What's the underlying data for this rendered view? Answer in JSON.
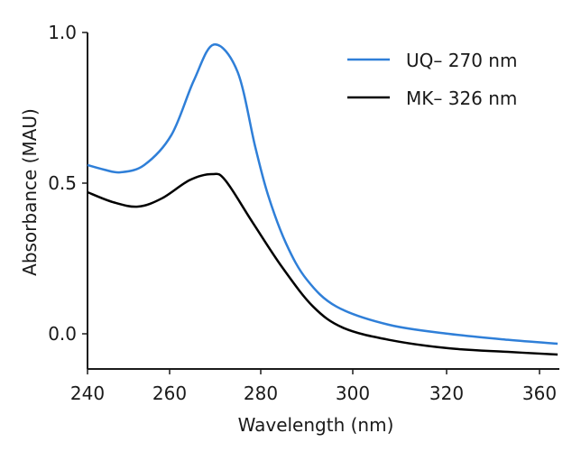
{
  "chart_data": {
    "type": "line",
    "title": "",
    "xlabel": "Wavelength (nm)",
    "ylabel": "Absorbance (MAU)",
    "xlim": [
      240,
      368
    ],
    "ylim": [
      -0.12,
      1.0
    ],
    "x_ticks": [
      240,
      260,
      280,
      300,
      320,
      360
    ],
    "x_tick_labels": [
      "240",
      "260",
      "280",
      "300",
      "320",
      "360"
    ],
    "y_ticks": [
      0.0,
      0.5,
      1.0
    ],
    "y_tick_labels": [
      "0.0",
      "0.5",
      "1.0"
    ],
    "grid": false,
    "legend_position": "top-right",
    "series": [
      {
        "name": "UQ– 270 nm",
        "color": "#2f7fd8",
        "x": [
          240,
          244,
          248,
          253.8,
          260.4,
          265.3,
          269.7,
          274.9,
          278.8,
          281.6,
          285.5,
          290.0,
          296.5,
          307.7,
          320.8,
          346.4,
          367.8
        ],
        "y": [
          0.56,
          0.545,
          0.536,
          0.56,
          0.66,
          0.84,
          0.96,
          0.87,
          0.62,
          0.46,
          0.3,
          0.18,
          0.09,
          0.03,
          0.0,
          -0.02,
          -0.033
        ]
      },
      {
        "name": "MK– 326 nm",
        "color": "#000000",
        "x": [
          240,
          246.2,
          252.3,
          258.2,
          264.4,
          269.3,
          272.2,
          278.2,
          284.7,
          291.4,
          297.9,
          307.7,
          320.8,
          346.4,
          367.8
        ],
        "y": [
          0.47,
          0.437,
          0.422,
          0.45,
          0.51,
          0.53,
          0.51,
          0.37,
          0.22,
          0.09,
          0.02,
          -0.02,
          -0.048,
          -0.06,
          -0.069
        ]
      }
    ]
  }
}
